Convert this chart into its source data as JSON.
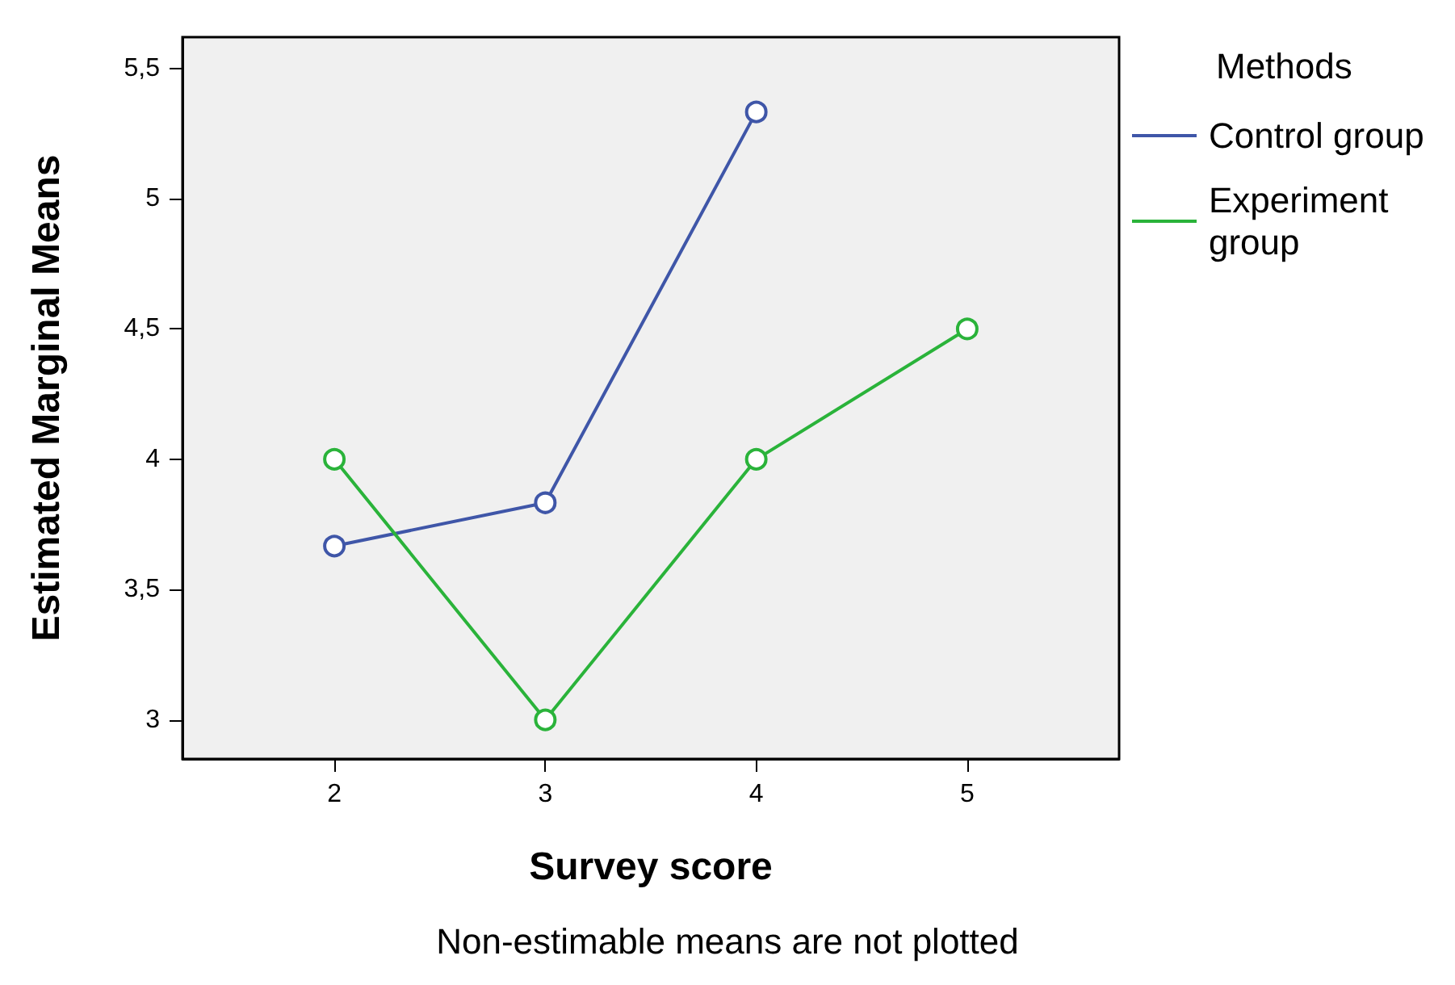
{
  "chart_data": {
    "type": "line",
    "xlabel": "Survey score",
    "ylabel": "Estimated Marginal Means",
    "legend_title": "Methods",
    "annotations": [
      "Non-estimable means are not plotted"
    ],
    "x": [
      2,
      3,
      4,
      5
    ],
    "series": [
      {
        "name": "Control group",
        "color": "#3f56a8",
        "values": [
          3.667,
          3.833,
          5.333,
          null
        ]
      },
      {
        "name": "Experiment group",
        "color": "#2ab33a",
        "values": [
          4,
          3,
          4,
          4.5
        ]
      }
    ],
    "xlim": [
      1.28,
      5.72
    ],
    "xticks": [
      2,
      3,
      4,
      5
    ],
    "ylim": [
      2.85,
      5.62
    ],
    "yticks": [
      3,
      {
        "value": 3.5,
        "label": "3,5"
      },
      4,
      {
        "value": 4.5,
        "label": "4,5"
      },
      5,
      {
        "value": 5.5,
        "label": "5,5"
      }
    ],
    "grid": false,
    "legend": "right",
    "marker": "circle",
    "line_style": "solid"
  }
}
